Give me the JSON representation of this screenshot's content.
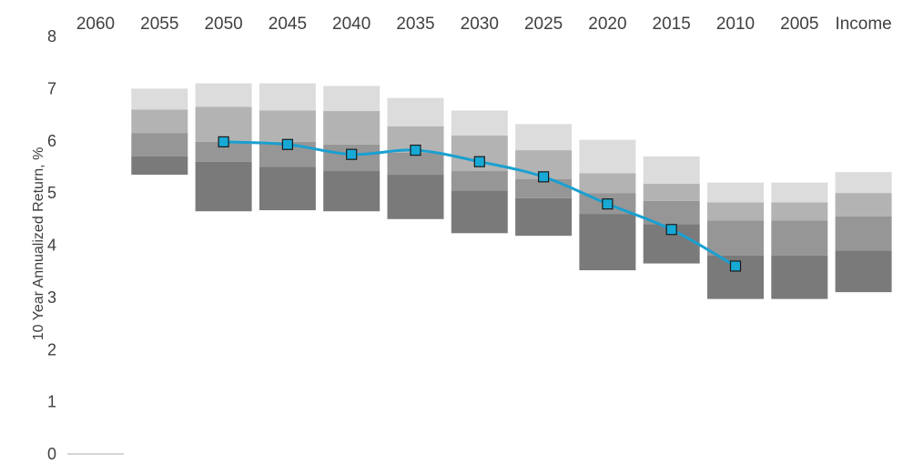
{
  "chart_data": {
    "type": "floating-stacked-bar-with-line",
    "ylabel": "10 Year Annualized Return, %",
    "ylim": [
      0,
      8
    ],
    "yticks": [
      "0",
      "1",
      "2",
      "3",
      "4",
      "5",
      "6",
      "7",
      "8"
    ],
    "categories": [
      "2060",
      "2055",
      "2050",
      "2045",
      "2040",
      "2035",
      "2030",
      "2025",
      "2020",
      "2015",
      "2010",
      "2005",
      "Income"
    ],
    "band_colors": [
      "#7a7a7a",
      "#969696",
      "#b3b3b3",
      "#dcdcdc"
    ],
    "line_color": "#1aa0d0",
    "marker_color": "#17a9d6",
    "bars": [
      {
        "category": "2060",
        "bounds": [
          0.0,
          0.0,
          0.0,
          0.0,
          0.0
        ]
      },
      {
        "category": "2055",
        "bounds": [
          5.35,
          5.7,
          6.15,
          6.6,
          7.0
        ]
      },
      {
        "category": "2050",
        "bounds": [
          4.65,
          5.6,
          5.98,
          6.65,
          7.1
        ]
      },
      {
        "category": "2045",
        "bounds": [
          4.67,
          5.5,
          5.98,
          6.58,
          7.1
        ]
      },
      {
        "category": "2040",
        "bounds": [
          4.65,
          5.42,
          5.93,
          6.57,
          7.05
        ]
      },
      {
        "category": "2035",
        "bounds": [
          4.5,
          5.35,
          5.77,
          6.28,
          6.82
        ]
      },
      {
        "category": "2030",
        "bounds": [
          4.23,
          5.05,
          5.42,
          6.1,
          6.58
        ]
      },
      {
        "category": "2025",
        "bounds": [
          4.18,
          4.9,
          5.27,
          5.82,
          6.32
        ]
      },
      {
        "category": "2020",
        "bounds": [
          3.52,
          4.6,
          5.0,
          5.38,
          6.02
        ]
      },
      {
        "category": "2015",
        "bounds": [
          3.65,
          4.4,
          4.85,
          5.18,
          5.7
        ]
      },
      {
        "category": "2010",
        "bounds": [
          2.97,
          3.8,
          4.47,
          4.82,
          5.2
        ]
      },
      {
        "category": "2005",
        "bounds": [
          2.97,
          3.8,
          4.47,
          4.82,
          5.2
        ]
      },
      {
        "category": "Income",
        "bounds": [
          3.1,
          3.9,
          4.55,
          5.0,
          5.4
        ]
      }
    ],
    "line_series": {
      "categories": [
        "2050",
        "2045",
        "2040",
        "2035",
        "2030",
        "2025",
        "2020",
        "2015",
        "2010"
      ],
      "values": [
        5.98,
        5.93,
        5.74,
        5.82,
        5.6,
        5.31,
        4.79,
        4.3,
        3.6
      ]
    }
  }
}
